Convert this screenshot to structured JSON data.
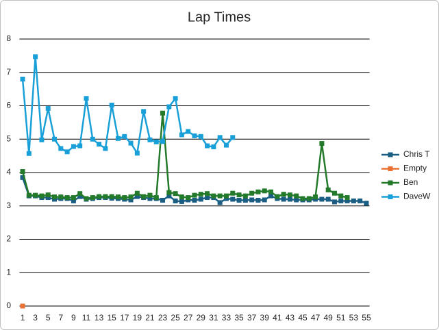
{
  "chart_data": {
    "type": "line",
    "title": "Lap Times",
    "categories": [
      1,
      null,
      3,
      null,
      5,
      null,
      7,
      null,
      9,
      null,
      11,
      null,
      13,
      null,
      15,
      null,
      17,
      null,
      19,
      null,
      21,
      null,
      23,
      null,
      25,
      null,
      27,
      null,
      29,
      null,
      31,
      null,
      33,
      null,
      35,
      null,
      37,
      null,
      39,
      null,
      41,
      null,
      43,
      null,
      45,
      null,
      47,
      null,
      49,
      null,
      51,
      null,
      53,
      null,
      55
    ],
    "ylim": [
      0,
      8
    ],
    "yticks": [
      0,
      1,
      2,
      3,
      4,
      5,
      6,
      7,
      8
    ],
    "grid": true,
    "legend": "right",
    "series": [
      {
        "name": "Chris T",
        "color": "#1b5e84",
        "values": [
          3.85,
          3.3,
          3.3,
          3.25,
          3.25,
          3.2,
          3.22,
          3.22,
          3.15,
          3.28,
          3.2,
          3.22,
          3.25,
          3.25,
          3.23,
          3.22,
          3.2,
          3.18,
          3.28,
          3.25,
          3.22,
          3.22,
          3.17,
          3.3,
          3.15,
          3.13,
          3.18,
          3.17,
          3.2,
          3.25,
          3.25,
          3.1,
          3.22,
          3.2,
          3.17,
          3.17,
          3.18,
          3.17,
          3.18,
          3.3,
          3.22,
          3.2,
          3.2,
          3.18,
          3.18,
          3.18,
          3.2,
          3.2,
          3.2,
          3.12,
          3.15,
          3.15,
          3.15,
          3.15,
          3.08
        ]
      },
      {
        "name": "Empty",
        "color": "#e97132",
        "values": [
          0,
          null,
          null,
          null,
          null,
          null,
          null,
          null,
          null,
          null,
          null,
          null,
          null,
          null,
          null,
          null,
          null,
          null,
          null,
          null,
          null,
          null,
          null,
          null,
          null,
          null,
          null,
          null,
          null,
          null,
          null,
          null,
          null,
          null,
          null,
          null,
          null,
          null,
          null,
          null,
          null,
          null,
          null,
          null,
          null,
          null,
          null,
          null,
          null,
          null,
          null,
          null,
          null,
          null,
          null
        ]
      },
      {
        "name": "Ben",
        "color": "#227a2a",
        "values": [
          4.03,
          3.32,
          3.32,
          3.3,
          3.33,
          3.27,
          3.27,
          3.25,
          3.25,
          3.37,
          3.22,
          3.25,
          3.28,
          3.28,
          3.28,
          3.27,
          3.25,
          3.27,
          3.38,
          3.28,
          3.32,
          3.25,
          5.78,
          3.4,
          3.37,
          3.27,
          3.25,
          3.32,
          3.35,
          3.37,
          3.3,
          3.3,
          3.3,
          3.38,
          3.33,
          3.3,
          3.38,
          3.42,
          3.45,
          3.42,
          3.28,
          3.35,
          3.33,
          3.3,
          3.22,
          3.22,
          3.27,
          4.87,
          3.48,
          3.38,
          3.3,
          3.25,
          null,
          null,
          null
        ]
      },
      {
        "name": "DaveW",
        "color": "#1aa0d8",
        "values": [
          6.8,
          4.57,
          7.47,
          4.98,
          5.92,
          5.0,
          4.72,
          4.62,
          4.78,
          4.8,
          6.22,
          5.0,
          4.85,
          4.72,
          6.02,
          5.02,
          5.08,
          4.88,
          4.58,
          5.83,
          4.98,
          4.92,
          4.93,
          5.97,
          6.22,
          5.13,
          5.23,
          5.1,
          5.08,
          4.8,
          4.77,
          5.05,
          4.82,
          5.05,
          null,
          null,
          null,
          null,
          null,
          null,
          null,
          null,
          null,
          null,
          null,
          null,
          null,
          null,
          null,
          null,
          null,
          null,
          null,
          null,
          null
        ]
      }
    ]
  }
}
